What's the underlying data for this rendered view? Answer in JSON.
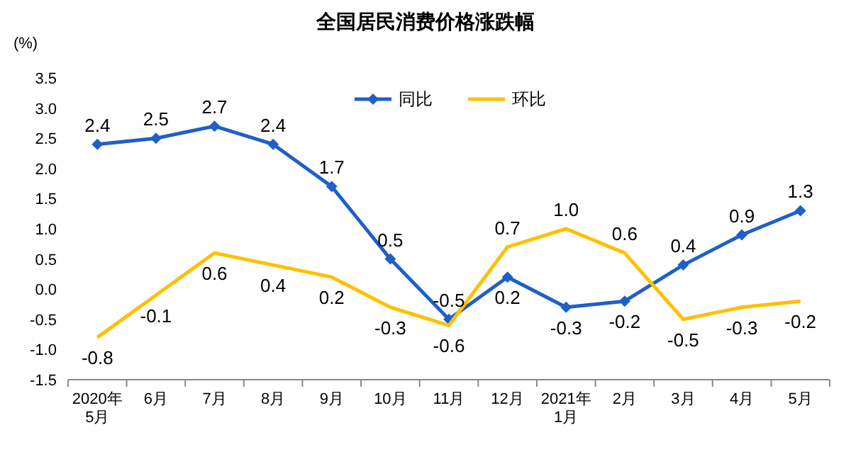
{
  "chart_data": {
    "type": "line",
    "title": "全国居民消费价格涨跌幅",
    "ylabel": "(%)",
    "categories": [
      "2020年\n5月",
      "6月",
      "7月",
      "8月",
      "9月",
      "10月",
      "11月",
      "12月",
      "2021年\n1月",
      "2月",
      "3月",
      "4月",
      "5月"
    ],
    "series": [
      {
        "name": "同比",
        "color": "#1f5fc8",
        "marker": "diamond",
        "values": [
          2.4,
          2.5,
          2.7,
          2.4,
          1.7,
          0.5,
          -0.5,
          0.2,
          -0.3,
          -0.2,
          0.4,
          0.9,
          1.3
        ]
      },
      {
        "name": "环比",
        "color": "#ffc000",
        "marker": "none",
        "values": [
          -0.8,
          -0.1,
          0.6,
          0.4,
          0.2,
          -0.3,
          -0.6,
          0.7,
          1.0,
          0.6,
          -0.5,
          -0.3,
          -0.2
        ],
        "value_labels": [
          "-0.8",
          "-0.1",
          "0.6",
          "0.4",
          "0.2",
          "-0.3",
          "-0.6",
          "0.7",
          "1.0",
          "0.6",
          "-0.5",
          "-0.3",
          "-0.2"
        ]
      }
    ],
    "ylim": [
      -1.5,
      3.5
    ],
    "yticks": [
      {
        "value": -1.5,
        "label": "-1.5"
      },
      {
        "value": -1,
        "label": "-1.0"
      },
      {
        "value": -0.5,
        "label": "-0.5"
      },
      {
        "value": 0,
        "label": "0.0"
      },
      {
        "value": 0.5,
        "label": "0.5"
      },
      {
        "value": 1,
        "label": "1.0"
      },
      {
        "value": 1.5,
        "label": "1.5"
      },
      {
        "value": 2,
        "label": "2.0"
      },
      {
        "value": 2.5,
        "label": "2.5"
      },
      {
        "value": 3,
        "label": "3.0"
      },
      {
        "value": 3.5,
        "label": "3.5"
      }
    ],
    "data_labels": true,
    "legend": "top",
    "line_style": "solid",
    "grid": false
  }
}
